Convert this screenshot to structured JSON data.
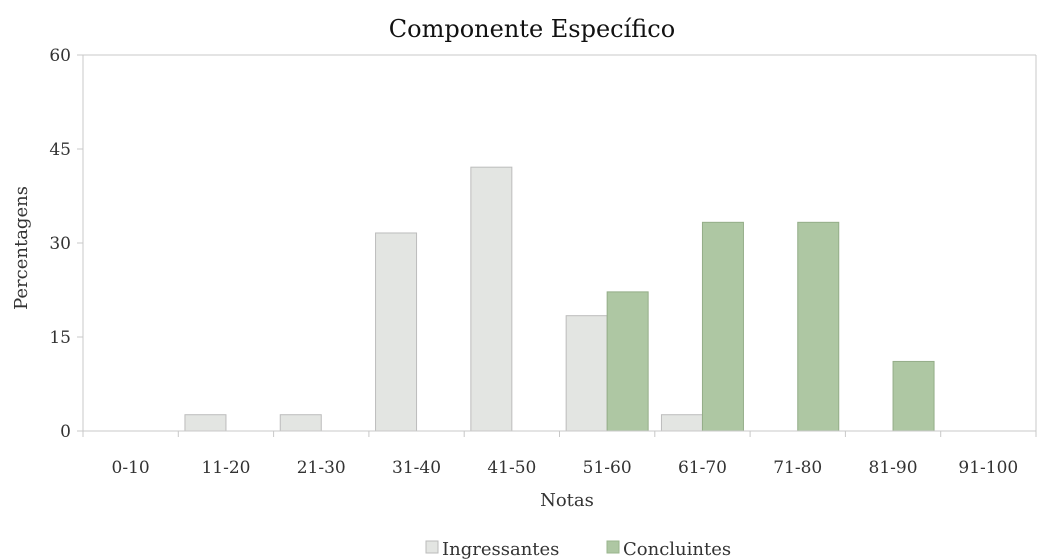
{
  "chart_data": {
    "type": "bar",
    "title": "Componente Específico",
    "xlabel": "Notas",
    "ylabel": "Percentagens",
    "ylim": [
      0,
      60
    ],
    "yticks": [
      "0",
      "15",
      "30",
      "45",
      "60"
    ],
    "categories": [
      "0-10",
      "11-20",
      "21-30",
      "31-40",
      "41-50",
      "51-60",
      "61-70",
      "71-80",
      "81-90",
      "91-100"
    ],
    "series": [
      {
        "name": "Ingressantes",
        "color": "#e3e5e2",
        "values": [
          0,
          2.6,
          2.6,
          31.6,
          42.1,
          18.4,
          2.6,
          0,
          0,
          0
        ]
      },
      {
        "name": "Concluintes",
        "color": "#aec7a3",
        "values": [
          0,
          0,
          0,
          0,
          0,
          22.2,
          33.3,
          33.3,
          11.1,
          0
        ]
      }
    ],
    "grid": false,
    "legend_position": "bottom"
  }
}
